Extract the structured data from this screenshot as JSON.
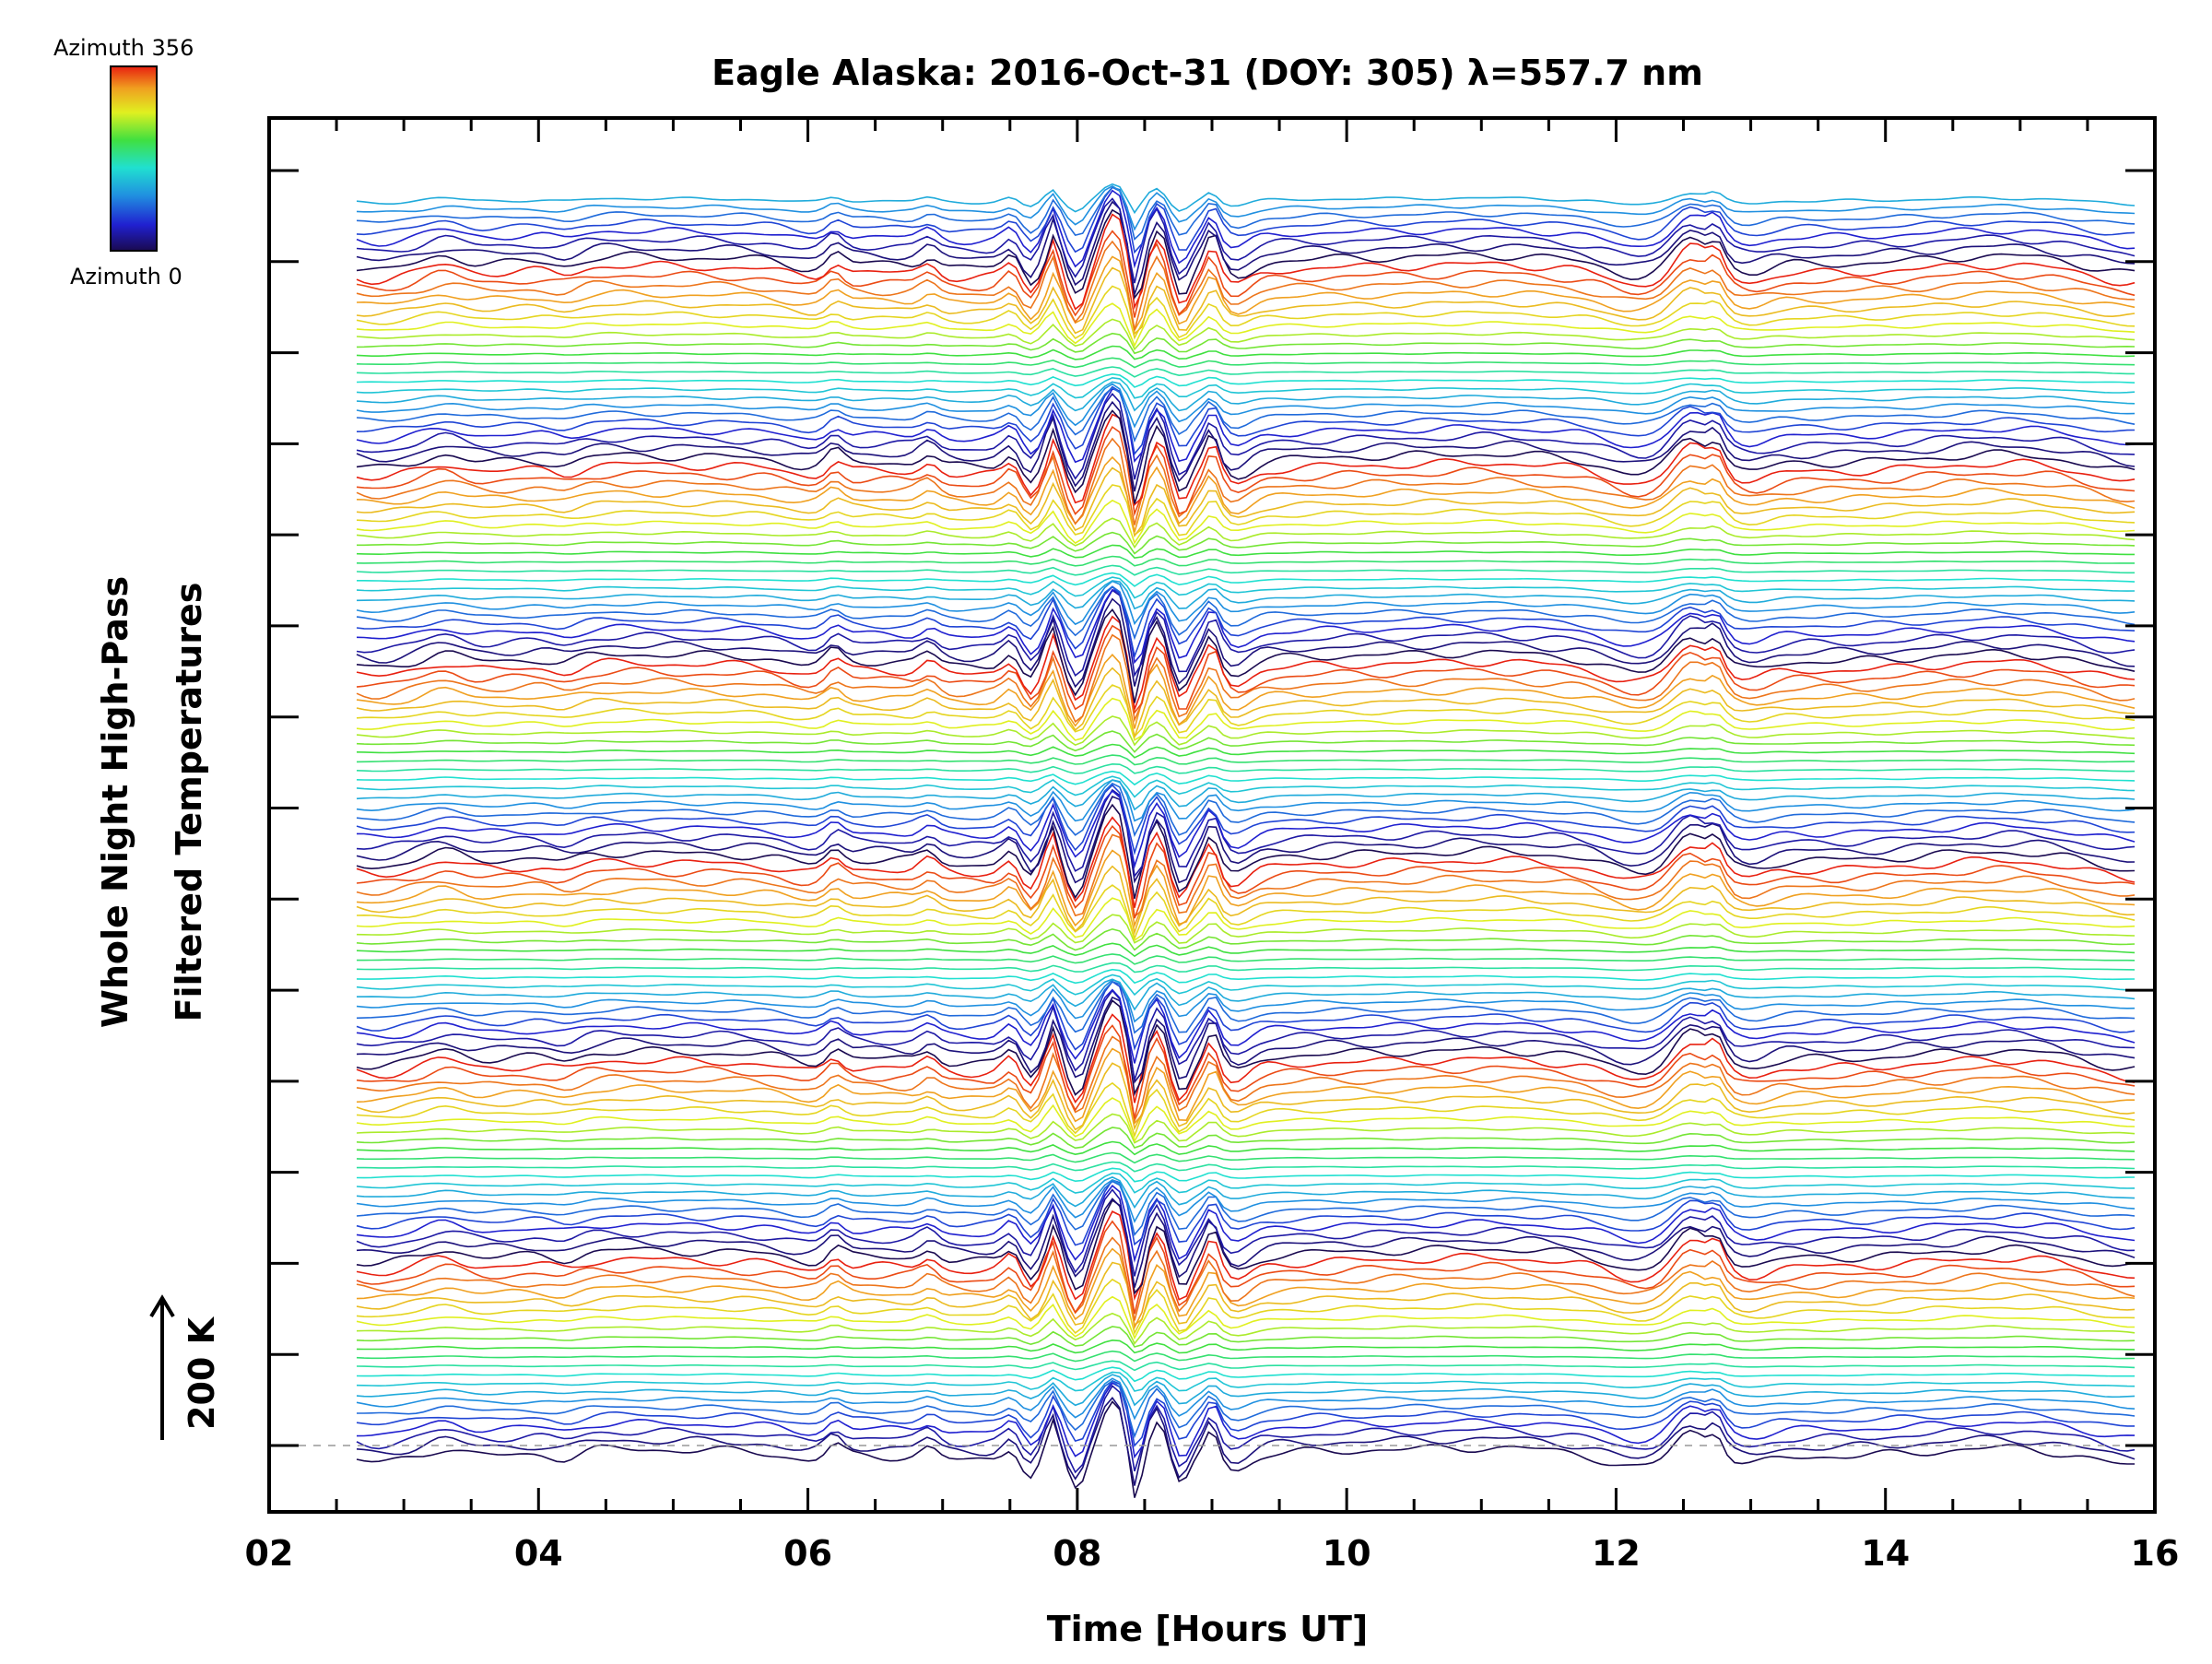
{
  "chart_data": {
    "type": "line",
    "title": "Eagle Alaska: 2016-Oct-31 (DOY: 305) λ=557.7 nm",
    "xlabel": "Time [Hours UT]",
    "ylabel_line1": "Whole Night High-Pass",
    "ylabel_line2": "Filtered Temperatures",
    "xlim": [
      2,
      16
    ],
    "x_tick_labels": [
      "02",
      "04",
      "06",
      "08",
      "10",
      "12",
      "14",
      "16"
    ],
    "x_tick_values": [
      2,
      4,
      6,
      8,
      10,
      12,
      14,
      16
    ],
    "scale_bar_label": "200 K",
    "colorbar": {
      "top_label": "Azimuth  356",
      "bottom_label": "Azimuth  0",
      "min": 0,
      "max": 356,
      "colors": [
        "#1a0a50",
        "#2020d0",
        "#2090e0",
        "#20e0d0",
        "#40e040",
        "#e0f020",
        "#f0a020",
        "#e82010"
      ]
    },
    "series_count": 140,
    "time_range": [
      2.65,
      15.85
    ],
    "grid": false
  }
}
